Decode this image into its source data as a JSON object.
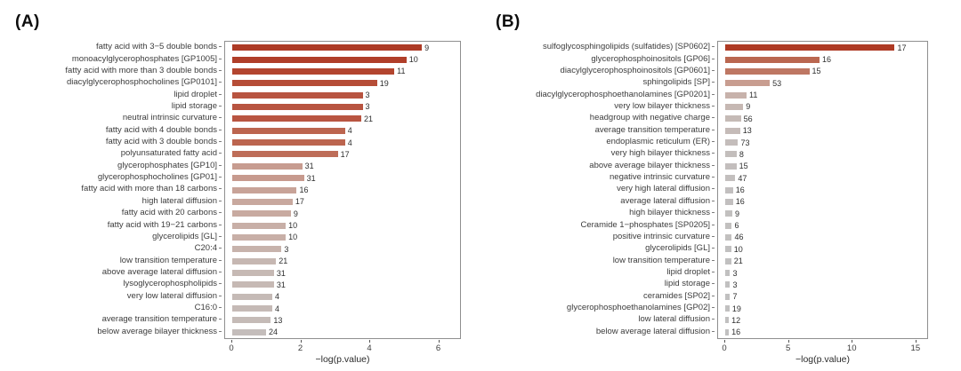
{
  "colors": {
    "bar_gradient_high": "#ae3a24",
    "bar_gradient_low": "#c1c0c0",
    "panel_border": "#8f8f8f",
    "label_text": "#3c3c3c"
  },
  "chart_data": [
    {
      "type": "bar",
      "panel_label": "(A)",
      "orientation": "horizontal",
      "xlabel": "−log(p.value)",
      "xticks": [
        0,
        2,
        4,
        6
      ],
      "xlim": [
        0,
        6.45
      ],
      "grid": false,
      "legend": "none",
      "rows": [
        {
          "label": "fatty acid with 3−5 double bonds",
          "value": 5.5,
          "count": 9,
          "color": "#ad3a25"
        },
        {
          "label": "monoacylglycerophosphates [GP1005]",
          "value": 5.05,
          "count": 10,
          "color": "#b03e29"
        },
        {
          "label": "fatty acid with more than 3 double bonds",
          "value": 4.7,
          "count": 11,
          "color": "#b3452f"
        },
        {
          "label": "diacylglycerophosphocholines [GP0101]",
          "value": 4.2,
          "count": 19,
          "color": "#b64d37"
        },
        {
          "label": "lipid droplet",
          "value": 3.78,
          "count": 3,
          "color": "#b85440"
        },
        {
          "label": "lipid storage",
          "value": 3.78,
          "count": 3,
          "color": "#b85440"
        },
        {
          "label": "neutral intrinsic curvature",
          "value": 3.74,
          "count": 21,
          "color": "#b95541"
        },
        {
          "label": "fatty acid with 4 double bonds",
          "value": 3.27,
          "count": 4,
          "color": "#bc654f"
        },
        {
          "label": "fatty acid with 3 double bonds",
          "value": 3.27,
          "count": 4,
          "color": "#bc654f"
        },
        {
          "label": "polyunsaturated fatty acid",
          "value": 3.06,
          "count": 17,
          "color": "#be6d58"
        },
        {
          "label": "glycerophosphates [GP10]",
          "value": 2.03,
          "count": 31,
          "color": "#c79c90"
        },
        {
          "label": "glycerophosphocholines [GP01]",
          "value": 2.08,
          "count": 31,
          "color": "#c79a8e"
        },
        {
          "label": "fatty acid with more than 18 carbons",
          "value": 1.87,
          "count": 16,
          "color": "#c8a398"
        },
        {
          "label": "high lateral diffusion",
          "value": 1.75,
          "count": 17,
          "color": "#c8a89e"
        },
        {
          "label": "fatty acid with 20 carbons",
          "value": 1.7,
          "count": 9,
          "color": "#c8aaa0"
        },
        {
          "label": "fatty acid with 19−21 carbons",
          "value": 1.55,
          "count": 10,
          "color": "#c8afa7"
        },
        {
          "label": "glycerolipids [GL]",
          "value": 1.55,
          "count": 10,
          "color": "#c8afa7"
        },
        {
          "label": "C20:4",
          "value": 1.43,
          "count": 3,
          "color": "#c7b3ac"
        },
        {
          "label": "low transition temperature",
          "value": 1.27,
          "count": 21,
          "color": "#c6b7b2"
        },
        {
          "label": "above average lateral diffusion",
          "value": 1.21,
          "count": 31,
          "color": "#c6b9b4"
        },
        {
          "label": "lysoglycerophospholipids",
          "value": 1.21,
          "count": 31,
          "color": "#c6b9b4"
        },
        {
          "label": "very low lateral diffusion",
          "value": 1.16,
          "count": 4,
          "color": "#c5bab6"
        },
        {
          "label": "C16:0",
          "value": 1.16,
          "count": 4,
          "color": "#c5bab6"
        },
        {
          "label": "average transition temperature",
          "value": 1.12,
          "count": 13,
          "color": "#c5bbb7"
        },
        {
          "label": "below average bilayer thickness",
          "value": 0.98,
          "count": 24,
          "color": "#c4bdbb"
        }
      ]
    },
    {
      "type": "bar",
      "panel_label": "(B)",
      "orientation": "horizontal",
      "xlabel": "−log(p.value)",
      "xticks": [
        0,
        5,
        10,
        15
      ],
      "xlim": [
        0,
        15.43
      ],
      "grid": false,
      "legend": "none",
      "rows": [
        {
          "label": "sulfoglycosphingolipids (sulfatides) [SP0602]",
          "value": 13.3,
          "count": 17,
          "color": "#ae3a24"
        },
        {
          "label": "glycerophosphoinositols [GP06]",
          "value": 7.4,
          "count": 16,
          "color": "#ba6750"
        },
        {
          "label": "diacylglycerophosphoinositols [GP0601]",
          "value": 6.6,
          "count": 15,
          "color": "#be7763"
        },
        {
          "label": "sphingolipids [SP]",
          "value": 3.5,
          "count": 53,
          "color": "#c89d90"
        },
        {
          "label": "diacylglycerophosphoethanolamines [GP0201]",
          "value": 1.68,
          "count": 11,
          "color": "#c7b2ab"
        },
        {
          "label": "very low bilayer thickness",
          "value": 1.41,
          "count": 9,
          "color": "#c6b8b3"
        },
        {
          "label": "headgroup with negative charge",
          "value": 1.23,
          "count": 56,
          "color": "#c5bab6"
        },
        {
          "label": "average transition temperature",
          "value": 1.17,
          "count": 13,
          "color": "#c5bbb8"
        },
        {
          "label": "endoplasmic reticulum (ER)",
          "value": 1.01,
          "count": 73,
          "color": "#c4bdbb"
        },
        {
          "label": "very high bilayer thickness",
          "value": 0.9,
          "count": 8,
          "color": "#c3bebc"
        },
        {
          "label": "above average bilayer thickness",
          "value": 0.88,
          "count": 15,
          "color": "#c3bebd"
        },
        {
          "label": "negative intrinsic curvature",
          "value": 0.79,
          "count": 47,
          "color": "#c3bfbe"
        },
        {
          "label": "very high lateral diffusion",
          "value": 0.61,
          "count": 16,
          "color": "#c2bfbf"
        },
        {
          "label": "average lateral diffusion",
          "value": 0.61,
          "count": 16,
          "color": "#c2bfbf"
        },
        {
          "label": "high bilayer thickness",
          "value": 0.56,
          "count": 9,
          "color": "#c2c0bf"
        },
        {
          "label": "Ceramide 1−phosphates [SP0205]",
          "value": 0.52,
          "count": 6,
          "color": "#c2c0bf"
        },
        {
          "label": "positive intrinsic curvature",
          "value": 0.52,
          "count": 46,
          "color": "#c2c0bf"
        },
        {
          "label": "glycerolipids [GL]",
          "value": 0.47,
          "count": 10,
          "color": "#c1c0c0"
        },
        {
          "label": "low transition temperature",
          "value": 0.47,
          "count": 21,
          "color": "#c1c0c0"
        },
        {
          "label": "lipid droplet",
          "value": 0.38,
          "count": 3,
          "color": "#c1c0c0"
        },
        {
          "label": "lipid storage",
          "value": 0.38,
          "count": 3,
          "color": "#c1c0c0"
        },
        {
          "label": "ceramides [SP02]",
          "value": 0.38,
          "count": 7,
          "color": "#c1c0c0"
        },
        {
          "label": "glycerophosphoethanolamines [GP02]",
          "value": 0.34,
          "count": 19,
          "color": "#c1c0c0"
        },
        {
          "label": "low lateral diffusion",
          "value": 0.29,
          "count": 12,
          "color": "#c1c0c0"
        },
        {
          "label": "below average lateral diffusion",
          "value": 0.29,
          "count": 16,
          "color": "#c1c0c0"
        }
      ]
    }
  ]
}
